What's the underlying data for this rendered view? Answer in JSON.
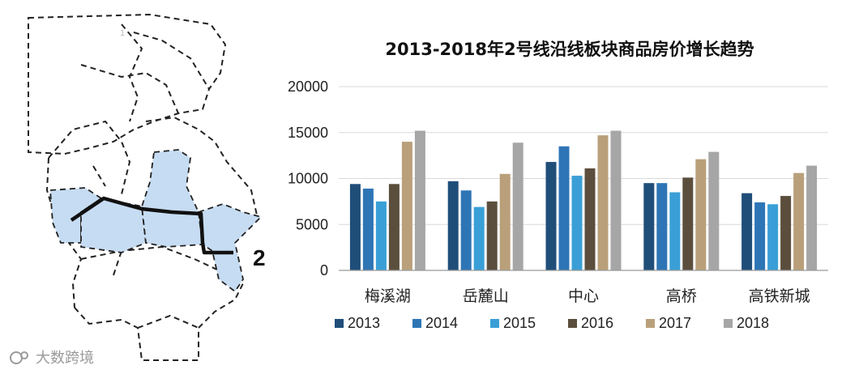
{
  "map": {
    "route_label": "2",
    "region_labels": [
      "1"
    ]
  },
  "watermark": {
    "text": "大数跨境"
  },
  "chart_data": {
    "type": "bar",
    "title": "2013-2018年2号线沿线板块商品房价增长趋势",
    "categories": [
      "梅溪湖",
      "岳麓山",
      "中心",
      "高桥",
      "高铁新城"
    ],
    "series": [
      {
        "name": "2013",
        "color": "#1f4e79",
        "values": [
          9400,
          9700,
          11800,
          9500,
          8400
        ]
      },
      {
        "name": "2014",
        "color": "#2e75b6",
        "values": [
          8900,
          8700,
          13500,
          9500,
          7400
        ]
      },
      {
        "name": "2015",
        "color": "#3a9fd6",
        "values": [
          7500,
          6900,
          10300,
          8500,
          7200
        ]
      },
      {
        "name": "2016",
        "color": "#5b4e3c",
        "values": [
          9400,
          7500,
          11100,
          10100,
          8100
        ]
      },
      {
        "name": "2017",
        "color": "#b9a07a",
        "values": [
          14000,
          10500,
          14700,
          12100,
          10600
        ]
      },
      {
        "name": "2018",
        "color": "#a6a6a6",
        "values": [
          15200,
          13900,
          15200,
          12900,
          11400
        ]
      }
    ],
    "ylim": [
      0,
      20000
    ],
    "yticks": [
      "0",
      "5000",
      "10000",
      "15000",
      "20000"
    ],
    "grid": true,
    "legend_position": "bottom"
  }
}
